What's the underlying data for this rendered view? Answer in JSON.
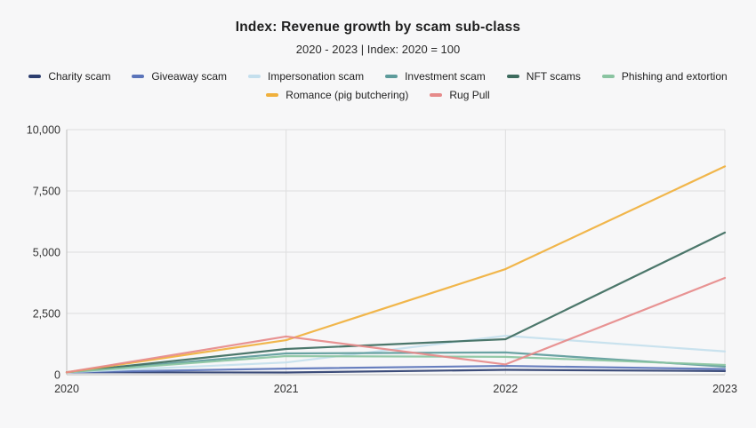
{
  "title": "Index: Revenue growth by scam sub-class",
  "subtitle": "2020 - 2023 | Index: 2020 = 100",
  "colors": {
    "background": "#f7f7f8",
    "gridline": "#dedede",
    "axis_line": "#bdbdbd",
    "tick_text": "#333333",
    "title_text": "#1f1f1f"
  },
  "chart_data": {
    "type": "line",
    "x": [
      "2020",
      "2021",
      "2022",
      "2023"
    ],
    "series": [
      {
        "name": "Charity scam",
        "color": "#2d3e6f",
        "values": [
          100,
          90,
          200,
          150
        ]
      },
      {
        "name": "Giveaway scam",
        "color": "#5b74ba",
        "values": [
          100,
          250,
          360,
          230
        ]
      },
      {
        "name": "Impersonation scam",
        "color": "#c4dfed",
        "values": [
          100,
          500,
          1590,
          950
        ]
      },
      {
        "name": "Investment scam",
        "color": "#5d9b9b",
        "values": [
          100,
          870,
          910,
          330
        ]
      },
      {
        "name": "NFT scams",
        "color": "#3d6b5e",
        "values": [
          100,
          1050,
          1450,
          5800
        ]
      },
      {
        "name": "Phishing and extortion",
        "color": "#8ac4a1",
        "values": [
          100,
          760,
          730,
          400
        ]
      },
      {
        "name": "Romance (pig butchering)",
        "color": "#f0b03c",
        "values": [
          100,
          1410,
          4310,
          8500
        ]
      },
      {
        "name": "Rug Pull",
        "color": "#e68a8a",
        "values": [
          100,
          1560,
          420,
          3950
        ]
      }
    ],
    "title": "Index: Revenue growth by scam sub-class",
    "xlabel": "",
    "ylabel": "",
    "ylim": [
      0,
      10000
    ],
    "yticks": [
      "0",
      "2,500",
      "5,000",
      "7,500",
      "10,000"
    ],
    "xticks": [
      "2020",
      "2021",
      "2022",
      "2023"
    ],
    "grid": true,
    "legend_position": "top"
  }
}
